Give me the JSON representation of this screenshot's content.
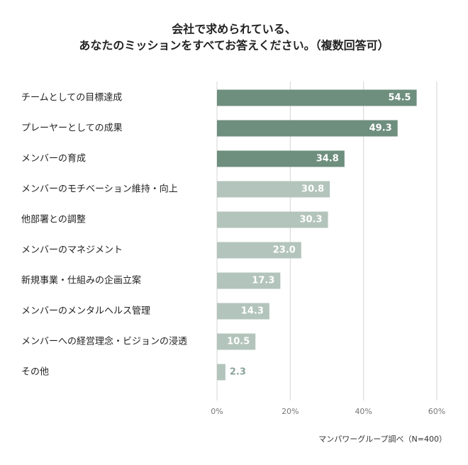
{
  "chart_data": {
    "type": "bar",
    "orientation": "horizontal",
    "title": [
      "会社で求められている、",
      "あなたのミッションをすべてお答えください。（複数回答可）"
    ],
    "categories": [
      "チームとしての目標達成",
      "プレーヤーとしての成果",
      "メンバーの育成",
      "メンバーのモチベーション維持・向上",
      "他部署との調整",
      "メンバーのマネジメント",
      "新規事業・仕組みの企画立案",
      "メンバーのメンタルヘルス管理",
      "メンバーへの経営理念・ビジョンの浸透",
      "その他"
    ],
    "values": [
      54.5,
      49.3,
      34.8,
      30.8,
      30.3,
      23.0,
      17.3,
      14.3,
      10.5,
      2.3
    ],
    "value_labels": [
      "54.5",
      "49.3",
      "34.8",
      "30.8",
      "30.3",
      "23.0",
      "17.3",
      "14.3",
      "10.5",
      "2.3"
    ],
    "colors": [
      "#6e8e7e",
      "#6e8e7e",
      "#6e8e7e",
      "#b3c4bc",
      "#b3c4bc",
      "#b3c4bc",
      "#b3c4bc",
      "#b3c4bc",
      "#b3c4bc",
      "#b3c4bc"
    ],
    "xlim": [
      0,
      60
    ],
    "xticks": [
      {
        "value": 0,
        "label": "0%"
      },
      {
        "value": 20,
        "label": "20%"
      },
      {
        "value": 40,
        "label": "40%"
      },
      {
        "value": 60,
        "label": "60%"
      }
    ],
    "grid": true,
    "source": "マンパワーグループ調べ（N=400）"
  }
}
